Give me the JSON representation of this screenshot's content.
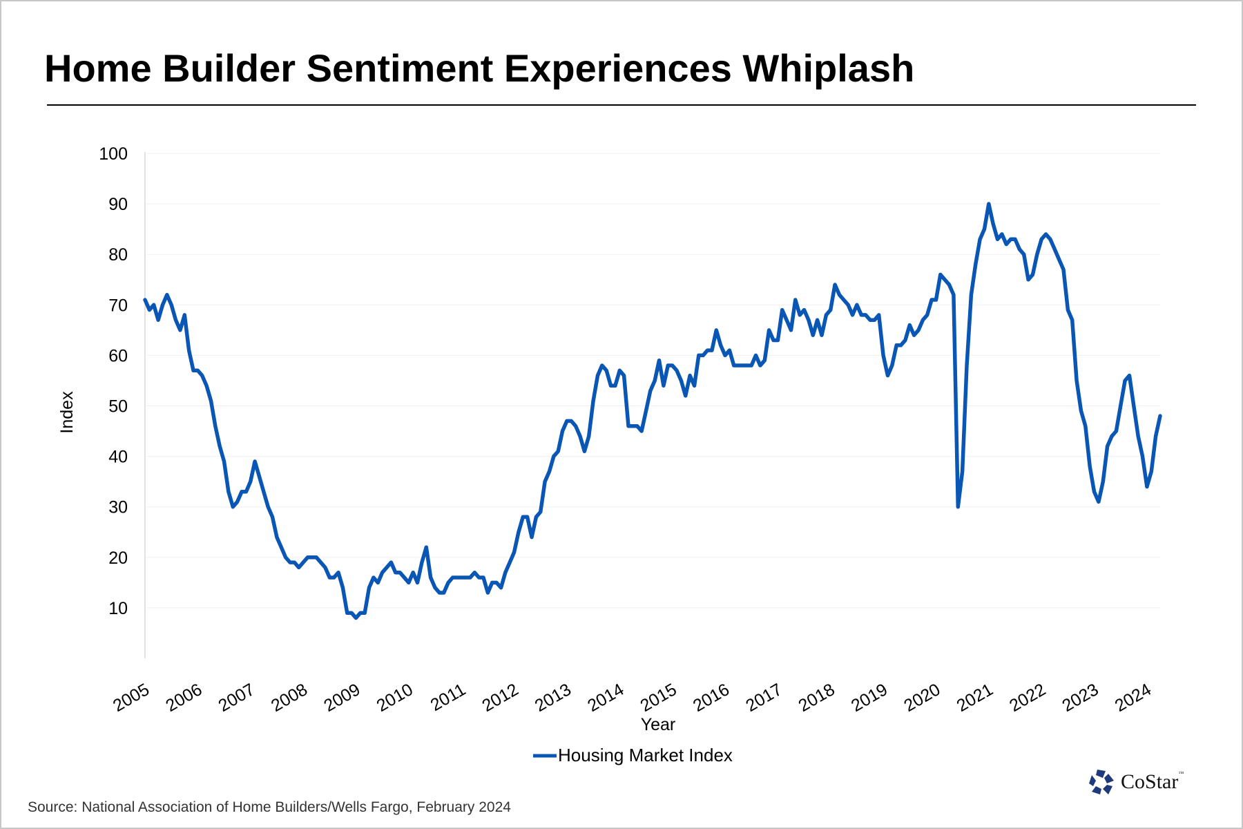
{
  "title": "Home Builder Sentiment Experiences Whiplash",
  "source": "Source: National Association of Home Builders/Wells Fargo, February 2024",
  "logo": {
    "text": "CoStar",
    "tm": "™",
    "color": "#1f3a7a"
  },
  "chart_data": {
    "type": "line",
    "xlabel": "Year",
    "ylabel": "Index",
    "ylim": [
      0,
      100
    ],
    "yticks": [
      10,
      20,
      30,
      40,
      50,
      60,
      70,
      80,
      90,
      100
    ],
    "xticks": [
      "2005",
      "2006",
      "2007",
      "2008",
      "2009",
      "2010",
      "2011",
      "2012",
      "2013",
      "2014",
      "2015",
      "2016",
      "2017",
      "2018",
      "2019",
      "2020",
      "2021",
      "2022",
      "2023",
      "2024"
    ],
    "x_start": "2005-01",
    "x_end": "2024-02",
    "frequency": "monthly",
    "grid": "horizontal",
    "legend": "bottom",
    "series": [
      {
        "name": "Housing Market Index",
        "color": "#0a56b4",
        "values": [
          71,
          69,
          70,
          67,
          70,
          72,
          70,
          67,
          65,
          68,
          61,
          57,
          57,
          56,
          54,
          51,
          46,
          42,
          39,
          33,
          30,
          31,
          33,
          33,
          35,
          39,
          36,
          33,
          30,
          28,
          24,
          22,
          20,
          19,
          19,
          18,
          19,
          20,
          20,
          20,
          19,
          18,
          16,
          16,
          17,
          14,
          9,
          9,
          8,
          9,
          9,
          14,
          16,
          15,
          17,
          18,
          19,
          17,
          17,
          16,
          15,
          17,
          15,
          19,
          22,
          16,
          14,
          13,
          13,
          15,
          16,
          16,
          16,
          16,
          16,
          17,
          16,
          16,
          13,
          15,
          15,
          14,
          17,
          19,
          21,
          25,
          28,
          28,
          24,
          28,
          29,
          35,
          37,
          40,
          41,
          45,
          47,
          47,
          46,
          44,
          41,
          44,
          51,
          56,
          58,
          57,
          54,
          54,
          57,
          56,
          46,
          46,
          46,
          45,
          49,
          53,
          55,
          59,
          54,
          58,
          58,
          57,
          55,
          52,
          56,
          54,
          60,
          60,
          61,
          61,
          65,
          62,
          60,
          61,
          58,
          58,
          58,
          58,
          58,
          60,
          58,
          59,
          65,
          63,
          63,
          69,
          67,
          65,
          71,
          68,
          69,
          67,
          64,
          67,
          64,
          68,
          69,
          74,
          72,
          71,
          70,
          68,
          70,
          68,
          68,
          67,
          67,
          68,
          60,
          56,
          58,
          62,
          62,
          63,
          66,
          64,
          65,
          67,
          68,
          71,
          71,
          76,
          75,
          74,
          72,
          30,
          37,
          58,
          72,
          78,
          83,
          85,
          90,
          86,
          83,
          84,
          82,
          83,
          83,
          81,
          80,
          75,
          76,
          80,
          83,
          84,
          83,
          81,
          79,
          77,
          69,
          67,
          55,
          49,
          46,
          38,
          33,
          31,
          35,
          42,
          44,
          45,
          50,
          55,
          56,
          50,
          44,
          40,
          34,
          37,
          44,
          48
        ]
      }
    ]
  }
}
